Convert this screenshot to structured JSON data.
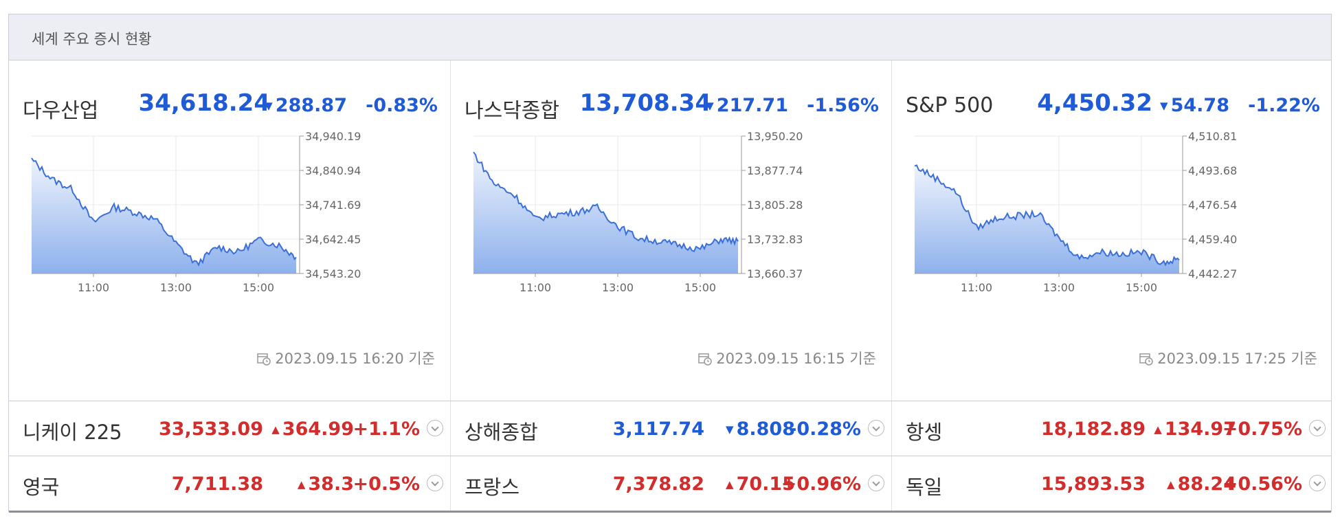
{
  "header": {
    "title": "세계 주요 증시 현황"
  },
  "panels": [
    {
      "name": "다우산업",
      "value": "34,618.24",
      "change": "288.87",
      "direction": "down",
      "percent": "-0.83%",
      "stamp": "2023.09.15 16:20 기준",
      "y_ticks": [
        "34,940.19",
        "34,840.94",
        "34,741.69",
        "34,642.45",
        "34,543.20"
      ],
      "x_ticks": [
        "11:00",
        "13:00",
        "15:00"
      ]
    },
    {
      "name": "나스닥종합",
      "value": "13,708.34",
      "change": "217.71",
      "direction": "down",
      "percent": "-1.56%",
      "stamp": "2023.09.15 16:15 기준",
      "y_ticks": [
        "13,950.20",
        "13,877.74",
        "13,805.28",
        "13,732.83",
        "13,660.37"
      ],
      "x_ticks": [
        "11:00",
        "13:00",
        "15:00"
      ]
    },
    {
      "name": "S&P 500",
      "value": "4,450.32",
      "change": "54.78",
      "direction": "down",
      "percent": "-1.22%",
      "stamp": "2023.09.15 17:25 기준",
      "y_ticks": [
        "4,510.81",
        "4,493.68",
        "4,476.54",
        "4,459.40",
        "4,442.27"
      ],
      "x_ticks": [
        "11:00",
        "13:00",
        "15:00"
      ]
    }
  ],
  "rows": [
    [
      {
        "name": "니케이 225",
        "value": "33,533.09",
        "change": "364.99",
        "direction": "up",
        "percent": "+1.1%"
      },
      {
        "name": "상해종합",
        "value": "3,117.74",
        "change": "8.808",
        "direction": "down",
        "percent": "-0.28%"
      },
      {
        "name": "항셍",
        "value": "18,182.89",
        "change": "134.97",
        "direction": "up",
        "percent": "+0.75%"
      }
    ],
    [
      {
        "name": "영국",
        "value": "7,711.38",
        "change": "38.3",
        "direction": "up",
        "percent": "+0.5%"
      },
      {
        "name": "프랑스",
        "value": "7,378.82",
        "change": "70.15",
        "direction": "up",
        "percent": "+0.96%"
      },
      {
        "name": "독일",
        "value": "15,893.53",
        "change": "88.24",
        "direction": "up",
        "percent": "+0.56%"
      }
    ]
  ],
  "colors": {
    "up": "#d22d2d",
    "down": "#1f5bd6",
    "line": "#3a6fd8",
    "fill_top": "#eef3fd",
    "fill_bottom": "#8eb1ec"
  },
  "icons": {
    "stamp": "calendar-clock-icon",
    "more": "chevron-down-icon"
  },
  "chart_data": [
    {
      "type": "area",
      "title": "다우산업",
      "x": [
        "09:30",
        "10:00",
        "10:30",
        "11:00",
        "11:30",
        "12:00",
        "12:30",
        "13:00",
        "13:30",
        "14:00",
        "14:30",
        "15:00",
        "15:30",
        "15:55"
      ],
      "values": [
        34872,
        34815,
        34785,
        34690,
        34735,
        34720,
        34700,
        34630,
        34570,
        34620,
        34605,
        34640,
        34625,
        34590
      ],
      "ylim": [
        34543.2,
        34940.19
      ]
    },
    {
      "type": "area",
      "title": "나스닥종합",
      "x": [
        "09:30",
        "10:00",
        "10:30",
        "11:00",
        "11:30",
        "12:00",
        "12:30",
        "13:00",
        "13:30",
        "14:00",
        "14:30",
        "15:00",
        "15:30",
        "15:55"
      ],
      "values": [
        13915,
        13850,
        13825,
        13775,
        13785,
        13790,
        13800,
        13760,
        13735,
        13728,
        13720,
        13712,
        13732,
        13728
      ],
      "ylim": [
        13660.37,
        13950.2
      ]
    },
    {
      "type": "area",
      "title": "S&P 500",
      "x": [
        "09:30",
        "10:00",
        "10:30",
        "11:00",
        "11:30",
        "12:00",
        "12:30",
        "13:00",
        "13:30",
        "14:00",
        "14:30",
        "15:00",
        "15:30",
        "15:55"
      ],
      "values": [
        4496,
        4490,
        4483,
        4465,
        4470,
        4471,
        4472,
        4460,
        4450,
        4453,
        4452,
        4453,
        4448,
        4449
      ],
      "ylim": [
        4442.27,
        4510.81
      ]
    }
  ]
}
